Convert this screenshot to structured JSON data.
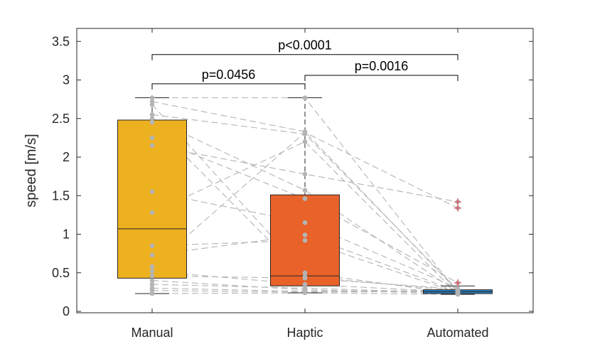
{
  "chart_data": {
    "type": "box",
    "categories": [
      "Manual",
      "Haptic",
      "Automated"
    ],
    "ylabel": "speed [m/s]",
    "ylim": [
      0,
      3.6
    ],
    "yticks": [
      0,
      0.5,
      1,
      1.5,
      2,
      2.5,
      3,
      3.5
    ],
    "ytick_labels": [
      "0",
      "0.5",
      "1",
      "1.5",
      "2",
      "2.5",
      "3",
      "3.5"
    ],
    "grid": false,
    "boxes": [
      {
        "category": "Manual",
        "whisker_low": 0.23,
        "q1": 0.43,
        "median": 1.07,
        "q3": 2.48,
        "whisker_high": 2.77,
        "color": "#EDB120",
        "outliers": []
      },
      {
        "category": "Haptic",
        "whisker_low": 0.24,
        "q1": 0.33,
        "median": 0.46,
        "q3": 1.51,
        "whisker_high": 2.77,
        "color": "#E8622A",
        "outliers": []
      },
      {
        "category": "Automated",
        "whisker_low": 0.22,
        "q1": 0.23,
        "median": 0.255,
        "q3": 0.28,
        "whisker_high": 0.33,
        "color": "#2D7FBF",
        "outliers": [
          0.37,
          1.34,
          1.42
        ]
      }
    ],
    "paired_lines": [
      [
        2.77,
        2.77,
        0.24
      ],
      [
        2.72,
        2.33,
        0.26
      ],
      [
        2.68,
        0.5,
        0.23
      ],
      [
        2.55,
        2.3,
        0.28
      ],
      [
        2.5,
        1.57,
        0.25
      ],
      [
        2.45,
        0.45,
        0.27
      ],
      [
        2.25,
        1.46,
        0.37
      ],
      [
        2.15,
        1.78,
        1.42
      ],
      [
        1.55,
        1.15,
        0.3
      ],
      [
        1.28,
        2.2,
        0.22
      ],
      [
        0.85,
        0.92,
        0.24
      ],
      [
        0.73,
        0.99,
        0.26
      ],
      [
        0.58,
        2.32,
        1.34
      ],
      [
        0.52,
        0.35,
        0.25
      ],
      [
        0.46,
        0.43,
        0.29
      ],
      [
        0.4,
        0.28,
        0.23
      ],
      [
        0.35,
        0.3,
        0.24
      ],
      [
        0.3,
        0.26,
        0.27
      ],
      [
        0.27,
        0.25,
        0.26
      ],
      [
        0.23,
        0.24,
        0.22
      ]
    ],
    "line_color": "#B4B4B4",
    "outlier_color": "#E0505A",
    "significance": [
      {
        "label": "p=0.0456",
        "from": 0,
        "to": 1,
        "y": 2.95
      },
      {
        "label": "p=0.0016",
        "from": 1,
        "to": 2,
        "y": 3.06
      },
      {
        "label": "p<0.0001",
        "from": 0,
        "to": 2,
        "y": 3.33
      }
    ]
  }
}
